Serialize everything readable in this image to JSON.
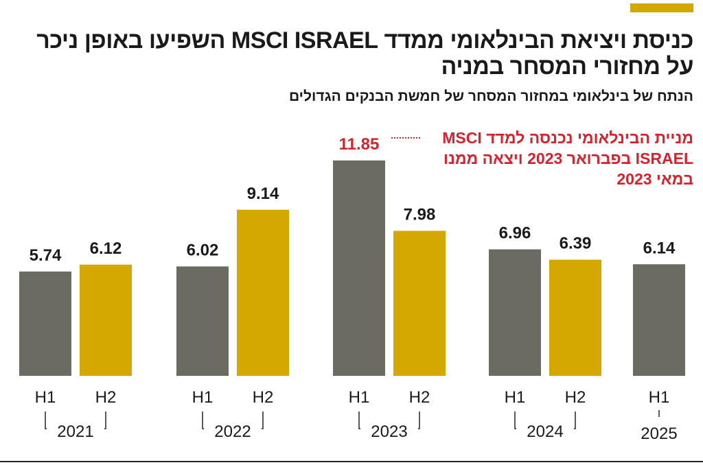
{
  "header": {
    "title": "כניסת ויציאת הבינלאומי ממדד MSCI ISRAEL השפיעו באופן ניכר על מחזורי המסחר במניה",
    "subtitle": "הנתח של בינלאומי במחזור המסחר של חמשת הבנקים הגדולים"
  },
  "annotation": "מניית הבינלאומי נכנסה למדד MSCI ISRAEL בפברואר 2023 ויצאה ממנו במאי 2023",
  "colors": {
    "h1": "#6b6b62",
    "h2": "#d4a800",
    "highlight": "#d9202b",
    "accent": "#d4a800"
  },
  "chart_data": {
    "type": "bar",
    "title": "",
    "xlabel": "",
    "ylabel": "",
    "ylim": [
      0,
      12
    ],
    "grid": false,
    "groups": [
      {
        "year": "2021",
        "bars": [
          {
            "label": "H1",
            "value": 5.74
          },
          {
            "label": "H2",
            "value": 6.12
          }
        ]
      },
      {
        "year": "2022",
        "bars": [
          {
            "label": "H1",
            "value": 6.02
          },
          {
            "label": "H2",
            "value": 9.14
          }
        ]
      },
      {
        "year": "2023",
        "bars": [
          {
            "label": "H1",
            "value": 11.85,
            "highlight": true
          },
          {
            "label": "H2",
            "value": 7.98
          }
        ]
      },
      {
        "year": "2024",
        "bars": [
          {
            "label": "H1",
            "value": 6.96
          },
          {
            "label": "H2",
            "value": 6.39
          }
        ]
      },
      {
        "year": "2025",
        "bars": [
          {
            "label": "H1",
            "value": 6.14
          }
        ]
      }
    ]
  }
}
